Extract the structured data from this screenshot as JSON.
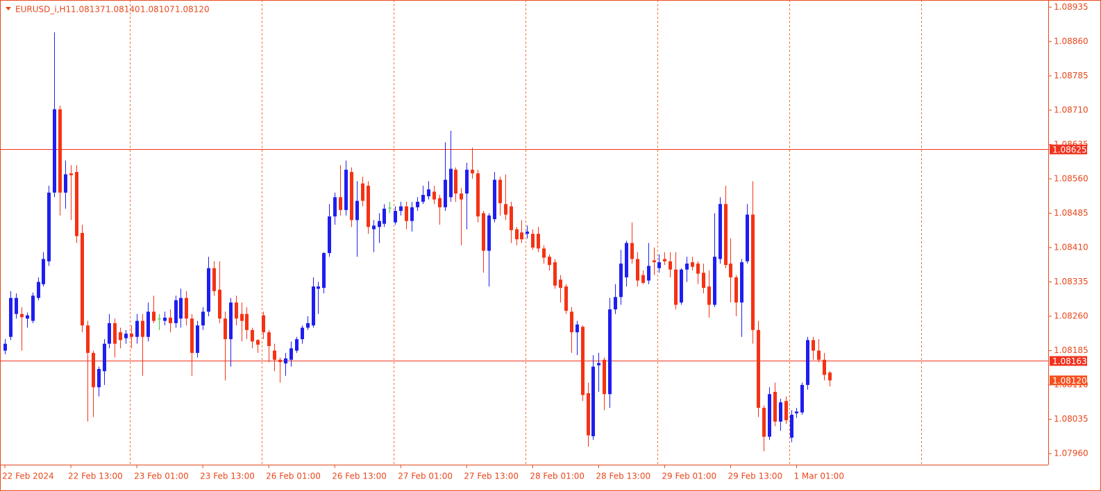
{
  "chart_data": {
    "type": "candlestick",
    "title": "EURUSD_i,H1",
    "ohlc_labels": [
      "1.08137",
      "1.08140",
      "1.08107",
      "1.08120"
    ],
    "categories": [
      "22 Feb 2024",
      null,
      null,
      null,
      null,
      null,
      null,
      null,
      null,
      null,
      null,
      null,
      "22 Feb 13:00",
      null,
      null,
      null,
      null,
      null,
      null,
      null,
      null,
      null,
      null,
      null,
      "23 Feb 01:00",
      null,
      null,
      null,
      null,
      null,
      null,
      null,
      null,
      null,
      null,
      null,
      "23 Feb 13:00",
      null,
      null,
      null,
      null,
      null,
      null,
      null,
      null,
      null,
      null,
      null,
      "26 Feb 01:00",
      null,
      null,
      null,
      null,
      null,
      null,
      null,
      null,
      null,
      null,
      null,
      "26 Feb 13:00",
      null,
      null,
      null,
      null,
      null,
      null,
      null,
      null,
      null,
      null,
      null,
      "27 Feb 01:00",
      null,
      null,
      null,
      null,
      null,
      null,
      null,
      null,
      null,
      null,
      null,
      "27 Feb 13:00",
      null,
      null,
      null,
      null,
      null,
      null,
      null,
      null,
      null,
      null,
      null,
      "28 Feb 01:00",
      null,
      null,
      null,
      null,
      null,
      null,
      null,
      null,
      null,
      null,
      null,
      "28 Feb 13:00",
      null,
      null,
      null,
      null,
      null,
      null,
      null,
      null,
      null,
      null,
      null,
      "29 Feb 01:00",
      null,
      null,
      null,
      null,
      null,
      null,
      null,
      null,
      null,
      null,
      null,
      "29 Feb 13:00",
      null,
      null,
      null,
      null,
      null,
      null,
      null,
      null,
      null,
      null,
      null,
      "1 Mar 01:00",
      null,
      null,
      null,
      null,
      null,
      null
    ],
    "open": [
      1.08185,
      1.08215,
      1.08265,
      1.08265,
      1.08255,
      1.0825,
      1.083,
      1.0833,
      1.0838,
      1.0853,
      1.08712,
      1.0853,
      1.08572,
      1.08575,
      1.08442,
      1.0824,
      1.0818,
      1.08105,
      1.0814,
      1.082,
      1.08245,
      1.08225,
      1.08212,
      1.08222,
      1.08215,
      1.0825,
      1.08215,
      1.0827,
      1.08255,
      1.0825,
      1.08257,
      1.08245,
      1.08255,
      1.083,
      1.08255,
      1.0818,
      1.0824,
      1.0827,
      1.08365,
      1.08318,
      1.08255,
      1.0821,
      1.0829,
      1.08265,
      1.08265,
      1.0823,
      1.08208,
      1.08262,
      1.08225,
      1.08185,
      1.08165,
      1.08157,
      1.08165,
      1.08185,
      1.0821,
      1.08235,
      1.0824,
      1.0832,
      1.08322,
      1.08398,
      1.08478,
      1.0852,
      1.08492,
      1.08575,
      1.0847,
      1.0855,
      1.08545,
      1.0845,
      1.08455,
      1.08462,
      1.08497,
      1.08465,
      1.0849,
      1.085,
      1.08468,
      1.08498,
      1.0851,
      1.08522,
      1.08532,
      1.08518,
      1.08498,
      1.0852,
      1.0858,
      1.08528,
      1.08528,
      1.0858,
      1.08572,
      1.08485,
      1.08403,
      1.08472,
      1.08558,
      1.08505,
      1.085,
      1.0845,
      1.08443,
      1.0844,
      1.0844,
      1.0844,
      1.08408,
      1.0839,
      1.08378,
      1.0834,
      1.08325,
      1.0827,
      1.08225,
      1.08237,
      1.08092,
      1.07998,
      1.08153,
      1.08165,
      1.0809,
      1.08275,
      1.08302,
      1.08345,
      1.0842,
      1.08385,
      1.0835,
      1.08338,
      1.08382,
      1.08365,
      1.08385,
      1.0838,
      1.08362,
      1.0829,
      1.08362,
      1.08378,
      1.08375,
      1.08355,
      1.08325,
      1.08285,
      1.08385,
      1.08505,
      1.08375,
      1.08345,
      1.0829,
      1.0838,
      1.08482,
      1.0823,
      1.0806,
      1.07997,
      1.08095,
      1.0803,
      1.08075,
      1.07995,
      1.08048,
      1.0805,
      1.0811,
      1.08208,
      1.08185,
      1.08165,
      1.08137
    ],
    "high": [
      1.0821,
      1.08315,
      1.0831,
      1.0828,
      1.08268,
      1.08312,
      1.08345,
      1.084,
      1.08545,
      1.0888,
      1.0872,
      1.086,
      1.0859,
      1.0859,
      1.0846,
      1.0825,
      1.08185,
      1.0815,
      1.0821,
      1.08265,
      1.08255,
      1.08235,
      1.0823,
      1.0824,
      1.08265,
      1.08265,
      1.0829,
      1.08305,
      1.08265,
      1.0827,
      1.08275,
      1.08305,
      1.0832,
      1.08315,
      1.08265,
      1.0825,
      1.0828,
      1.0839,
      1.0838,
      1.0838,
      1.0827,
      1.083,
      1.08305,
      1.0829,
      1.0828,
      1.08235,
      1.0821,
      1.0827,
      1.0823,
      1.082,
      1.0817,
      1.0818,
      1.08205,
      1.08215,
      1.0824,
      1.0826,
      1.08345,
      1.08335,
      1.084,
      1.08505,
      1.0853,
      1.0859,
      1.086,
      1.08585,
      1.08555,
      1.08565,
      1.08555,
      1.0847,
      1.08485,
      1.08505,
      1.0851,
      1.085,
      1.0851,
      1.0851,
      1.0851,
      1.0852,
      1.08545,
      1.08555,
      1.08545,
      1.08525,
      1.0864,
      1.08665,
      1.08585,
      1.0854,
      1.08595,
      1.08628,
      1.0858,
      1.0849,
      1.08485,
      1.08575,
      1.08565,
      1.0857,
      1.0851,
      1.08455,
      1.0847,
      1.08458,
      1.0845,
      1.08455,
      1.08415,
      1.08395,
      1.08385,
      1.0835,
      1.0833,
      1.0828,
      1.0825,
      1.0824,
      1.08115,
      1.08175,
      1.0818,
      1.0817,
      1.083,
      1.0833,
      1.08405,
      1.08425,
      1.08465,
      1.084,
      1.0836,
      1.0842,
      1.0841,
      1.08395,
      1.084,
      1.084,
      1.084,
      1.08365,
      1.0839,
      1.0839,
      1.0838,
      1.08375,
      1.0836,
      1.08485,
      1.0852,
      1.08545,
      1.0843,
      1.0835,
      1.08385,
      1.08505,
      1.08555,
      1.0825,
      1.08065,
      1.08105,
      1.08115,
      1.0808,
      1.08085,
      1.08055,
      1.0806,
      1.08115,
      1.08215,
      1.08215,
      1.0821,
      1.0818,
      1.0814
    ],
    "low": [
      1.08177,
      1.08208,
      1.08255,
      1.08185,
      1.08235,
      1.08245,
      1.08295,
      1.08325,
      1.0837,
      1.0852,
      1.0848,
      1.08495,
      1.0847,
      1.0842,
      1.08225,
      1.0803,
      1.0804,
      1.08085,
      1.0811,
      1.0819,
      1.0817,
      1.0819,
      1.082,
      1.0819,
      1.082,
      1.0813,
      1.08205,
      1.08245,
      1.0823,
      1.0824,
      1.08225,
      1.08235,
      1.08235,
      1.0824,
      1.0813,
      1.0817,
      1.0823,
      1.0826,
      1.08305,
      1.08245,
      1.0812,
      1.0815,
      1.0824,
      1.08205,
      1.0821,
      1.0819,
      1.0818,
      1.0821,
      1.0816,
      1.0814,
      1.08115,
      1.0813,
      1.0815,
      1.0818,
      1.082,
      1.0823,
      1.08235,
      1.08265,
      1.0831,
      1.0839,
      1.0846,
      1.0848,
      1.0848,
      1.08455,
      1.0839,
      1.085,
      1.0844,
      1.084,
      1.0842,
      1.08455,
      1.08485,
      1.0846,
      1.0848,
      1.0845,
      1.08445,
      1.0849,
      1.08505,
      1.08515,
      1.08505,
      1.0846,
      1.0849,
      1.0851,
      1.0851,
      1.08415,
      1.0845,
      1.0856,
      1.08465,
      1.08355,
      1.08325,
      1.08465,
      1.0848,
      1.0847,
      1.0842,
      1.08415,
      1.0842,
      1.0843,
      1.08405,
      1.084,
      1.08375,
      1.0836,
      1.0832,
      1.0829,
      1.08265,
      1.0818,
      1.08175,
      1.08075,
      1.07975,
      1.0799,
      1.08095,
      1.08055,
      1.0806,
      1.08265,
      1.08285,
      1.08325,
      1.08375,
      1.08325,
      1.0833,
      1.0833,
      1.0835,
      1.08355,
      1.08372,
      1.08345,
      1.08275,
      1.08285,
      1.08335,
      1.0836,
      1.0833,
      1.0831,
      1.08257,
      1.0828,
      1.08375,
      1.08365,
      1.0829,
      1.0826,
      1.08215,
      1.08375,
      1.082,
      1.0804,
      1.07965,
      1.0799,
      1.0802,
      1.0801,
      1.08025,
      1.07985,
      1.08038,
      1.08045,
      1.081,
      1.08165,
      1.0816,
      1.0812,
      1.08107
    ],
    "close": [
      1.082,
      1.083,
      1.083,
      1.08258,
      1.08262,
      1.08305,
      1.08335,
      1.08385,
      1.0853,
      1.08712,
      1.0853,
      1.0857,
      1.08568,
      1.08435,
      1.0824,
      1.0818,
      1.08105,
      1.08145,
      1.082,
      1.08245,
      1.082,
      1.08208,
      1.08222,
      1.08215,
      1.0825,
      1.08215,
      1.0827,
      1.0825,
      1.08255,
      1.08257,
      1.08245,
      1.08295,
      1.083,
      1.08255,
      1.0818,
      1.0824,
      1.0827,
      1.08365,
      1.08315,
      1.08255,
      1.0821,
      1.0829,
      1.08255,
      1.0825,
      1.0823,
      1.08205,
      1.08198,
      1.08225,
      1.08195,
      1.08165,
      1.0816,
      1.08168,
      1.0819,
      1.0821,
      1.08235,
      1.08245,
      1.08325,
      1.08325,
      1.08398,
      1.08478,
      1.0852,
      1.08492,
      1.0858,
      1.0847,
      1.08512,
      1.08512,
      1.08455,
      1.08458,
      1.08468,
      1.08495,
      1.08497,
      1.0849,
      1.085,
      1.08468,
      1.08498,
      1.0851,
      1.08525,
      1.08537,
      1.08515,
      1.08498,
      1.08558,
      1.08582,
      1.08528,
      1.08515,
      1.0858,
      1.08572,
      1.08478,
      1.08403,
      1.0848,
      1.08558,
      1.08507,
      1.08482,
      1.08448,
      1.08428,
      1.08428,
      1.08445,
      1.0841,
      1.08408,
      1.08388,
      1.08372,
      1.08327,
      1.08322,
      1.08272,
      1.08225,
      1.08242,
      1.08088,
      1.08,
      1.0815,
      1.08158,
      1.0809,
      1.08275,
      1.08302,
      1.08375,
      1.0842,
      1.08385,
      1.08338,
      1.08333,
      1.0837,
      1.08378,
      1.08378,
      1.0838,
      1.08362,
      1.08285,
      1.08362,
      1.08375,
      1.08368,
      1.08353,
      1.08322,
      1.08285,
      1.0839,
      1.08505,
      1.08372,
      1.08345,
      1.0829,
      1.08378,
      1.08482,
      1.0823,
      1.0806,
      1.07997,
      1.0809,
      1.0803,
      1.08072,
      1.08033,
      1.08045,
      1.08052,
      1.0811,
      1.08208,
      1.08185,
      1.08165,
      1.08132,
      1.0812
    ],
    "up_color": "#1e1ef0",
    "down_color": "#f53214",
    "flat_color": "#32cd32",
    "ylim": [
      1.07936,
      1.08943
    ],
    "yticks": [
      1.08935,
      {
        "value": 1.0886,
        "label": "1.08860"
      },
      1.08785,
      {
        "value": 1.0871,
        "label": "1.08710"
      },
      1.08635,
      {
        "value": 1.0856,
        "label": "1.08560"
      },
      1.08485,
      {
        "value": 1.0841,
        "label": "1.08410"
      },
      1.08335,
      {
        "value": 1.0826,
        "label": "1.08260"
      },
      1.08185,
      {
        "value": 1.0811,
        "label": "1.08110"
      },
      1.08035,
      {
        "value": 1.0796,
        "label": "1.07960"
      }
    ],
    "levels": [
      {
        "value": 1.08625,
        "label": "1.08625"
      },
      {
        "value": 1.08163,
        "label": "1.08163"
      }
    ],
    "last_price": {
      "value": 1.0812,
      "label": "1.08120"
    }
  }
}
